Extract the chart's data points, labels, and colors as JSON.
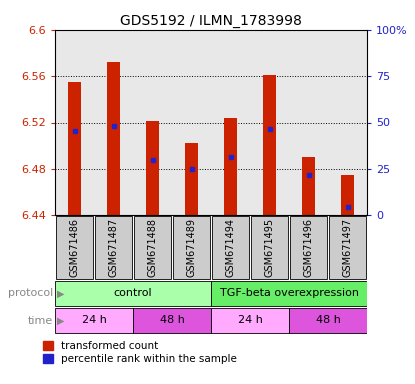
{
  "title": "GDS5192 / ILMN_1783998",
  "samples": [
    "GSM671486",
    "GSM671487",
    "GSM671488",
    "GSM671489",
    "GSM671494",
    "GSM671495",
    "GSM671496",
    "GSM671497"
  ],
  "bar_tops": [
    6.555,
    6.572,
    6.521,
    6.502,
    6.524,
    6.561,
    6.49,
    6.475
  ],
  "bar_bottoms": [
    6.44,
    6.44,
    6.44,
    6.44,
    6.44,
    6.44,
    6.44,
    6.44
  ],
  "blue_marker_pos": [
    6.513,
    6.517,
    6.488,
    6.48,
    6.49,
    6.514,
    6.475,
    6.447
  ],
  "ylim_left": [
    6.44,
    6.6
  ],
  "ylim_right": [
    0,
    100
  ],
  "yticks_left": [
    6.44,
    6.48,
    6.52,
    6.56,
    6.6
  ],
  "yticks_left_labels": [
    "6.44",
    "6.48",
    "6.52",
    "6.56",
    "6.6"
  ],
  "yticks_right": [
    0,
    25,
    50,
    75,
    100
  ],
  "yticks_right_labels": [
    "0",
    "25",
    "50",
    "75",
    "100%"
  ],
  "bar_color": "#cc2200",
  "blue_color": "#2222cc",
  "bg_color": "#ffffff",
  "plot_bg_color": "#e8e8e8",
  "protocol_groups": [
    {
      "label": "control",
      "start": 0,
      "end": 4,
      "color": "#aaffaa"
    },
    {
      "label": "TGF-beta overexpression",
      "start": 4,
      "end": 8,
      "color": "#66ee66"
    }
  ],
  "time_groups": [
    {
      "label": "24 h",
      "start": 0,
      "end": 2,
      "color": "#ffaaff"
    },
    {
      "label": "48 h",
      "start": 2,
      "end": 4,
      "color": "#dd55dd"
    },
    {
      "label": "24 h",
      "start": 4,
      "end": 6,
      "color": "#ffaaff"
    },
    {
      "label": "48 h",
      "start": 6,
      "end": 8,
      "color": "#dd55dd"
    }
  ],
  "sample_box_color": "#cccccc",
  "legend_red_label": "transformed count",
  "legend_blue_label": "percentile rank within the sample",
  "bar_width": 0.35,
  "title_fontsize": 10,
  "tick_fontsize": 8,
  "label_fontsize": 8,
  "sample_fontsize": 7
}
